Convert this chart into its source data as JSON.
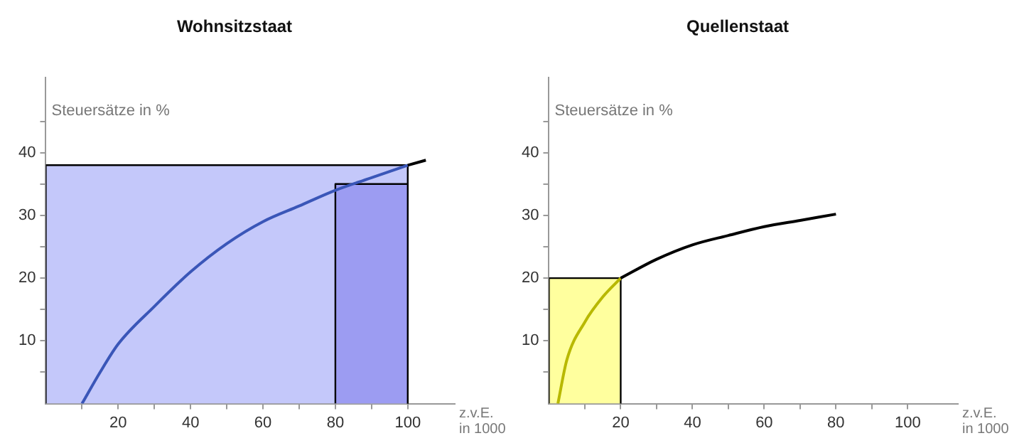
{
  "chart_data": [
    {
      "type": "line",
      "title": "Wohnsitzstaat",
      "ylabel": "Steuersätze in %",
      "xlabel": "z.v.E. in 1000",
      "xlim": [
        0,
        113
      ],
      "ylim": [
        0,
        52
      ],
      "xticks": [
        {
          "value": 10,
          "label": null
        },
        20,
        {
          "value": 30,
          "label": null
        },
        40,
        {
          "value": 50,
          "label": null
        },
        60,
        {
          "value": 70,
          "label": null
        },
        80,
        {
          "value": 90,
          "label": null
        },
        100
      ],
      "yticks": [
        {
          "value": 5,
          "label": null
        },
        10,
        {
          "value": 15,
          "label": null
        },
        20,
        {
          "value": 25,
          "label": null
        },
        30,
        {
          "value": 35,
          "label": null
        },
        40,
        {
          "value": 45,
          "label": null
        }
      ],
      "grid": false,
      "legend": false,
      "marker": "none",
      "series": [
        {
          "type": "area",
          "color": "#c4c8fa",
          "x": [
            0,
            0,
            100,
            100
          ],
          "values": [
            0,
            38,
            38,
            0
          ]
        },
        {
          "type": "area",
          "color": "#9c9cf2",
          "x": [
            80,
            80,
            100,
            100
          ],
          "values": [
            0,
            35,
            35,
            0
          ]
        },
        {
          "type": "line",
          "color": "#3a56b8",
          "x": [
            10,
            15,
            20,
            30,
            40,
            50,
            60,
            70,
            80,
            90,
            100
          ],
          "values": [
            0,
            5,
            9.5,
            15.5,
            21,
            25.5,
            29,
            31.5,
            34,
            36,
            38
          ]
        },
        {
          "type": "line",
          "color": "#000000",
          "x": [
            100,
            105
          ],
          "values": [
            38,
            38.8
          ]
        }
      ]
    },
    {
      "type": "line",
      "title": "Quellenstaat",
      "ylabel": "Steuersätze in %",
      "xlabel": "z.v.E. in 1000",
      "xlim": [
        0,
        114
      ],
      "ylim": [
        0,
        52
      ],
      "xticks": [
        {
          "value": 10,
          "label": null
        },
        20,
        {
          "value": 30,
          "label": null
        },
        40,
        {
          "value": 50,
          "label": null
        },
        60,
        {
          "value": 70,
          "label": null
        },
        80,
        {
          "value": 90,
          "label": null
        },
        100
      ],
      "yticks": [
        {
          "value": 5,
          "label": null
        },
        10,
        {
          "value": 15,
          "label": null
        },
        20,
        {
          "value": 25,
          "label": null
        },
        30,
        {
          "value": 35,
          "label": null
        },
        40,
        {
          "value": 45,
          "label": null
        }
      ],
      "grid": false,
      "legend": false,
      "marker": "none",
      "series": [
        {
          "type": "area",
          "color": "#ffff9e",
          "x": [
            0,
            0,
            20,
            20
          ],
          "values": [
            0,
            20,
            20,
            0
          ]
        },
        {
          "type": "line",
          "color": "#b8b800",
          "x": [
            2.5,
            5,
            10,
            15,
            20
          ],
          "values": [
            0,
            7,
            13,
            17,
            20
          ]
        },
        {
          "type": "line",
          "color": "#000000",
          "x": [
            20,
            30,
            40,
            50,
            60,
            70,
            80
          ],
          "values": [
            20,
            23,
            25.3,
            26.8,
            28.2,
            29.2,
            30.2
          ]
        }
      ]
    }
  ]
}
